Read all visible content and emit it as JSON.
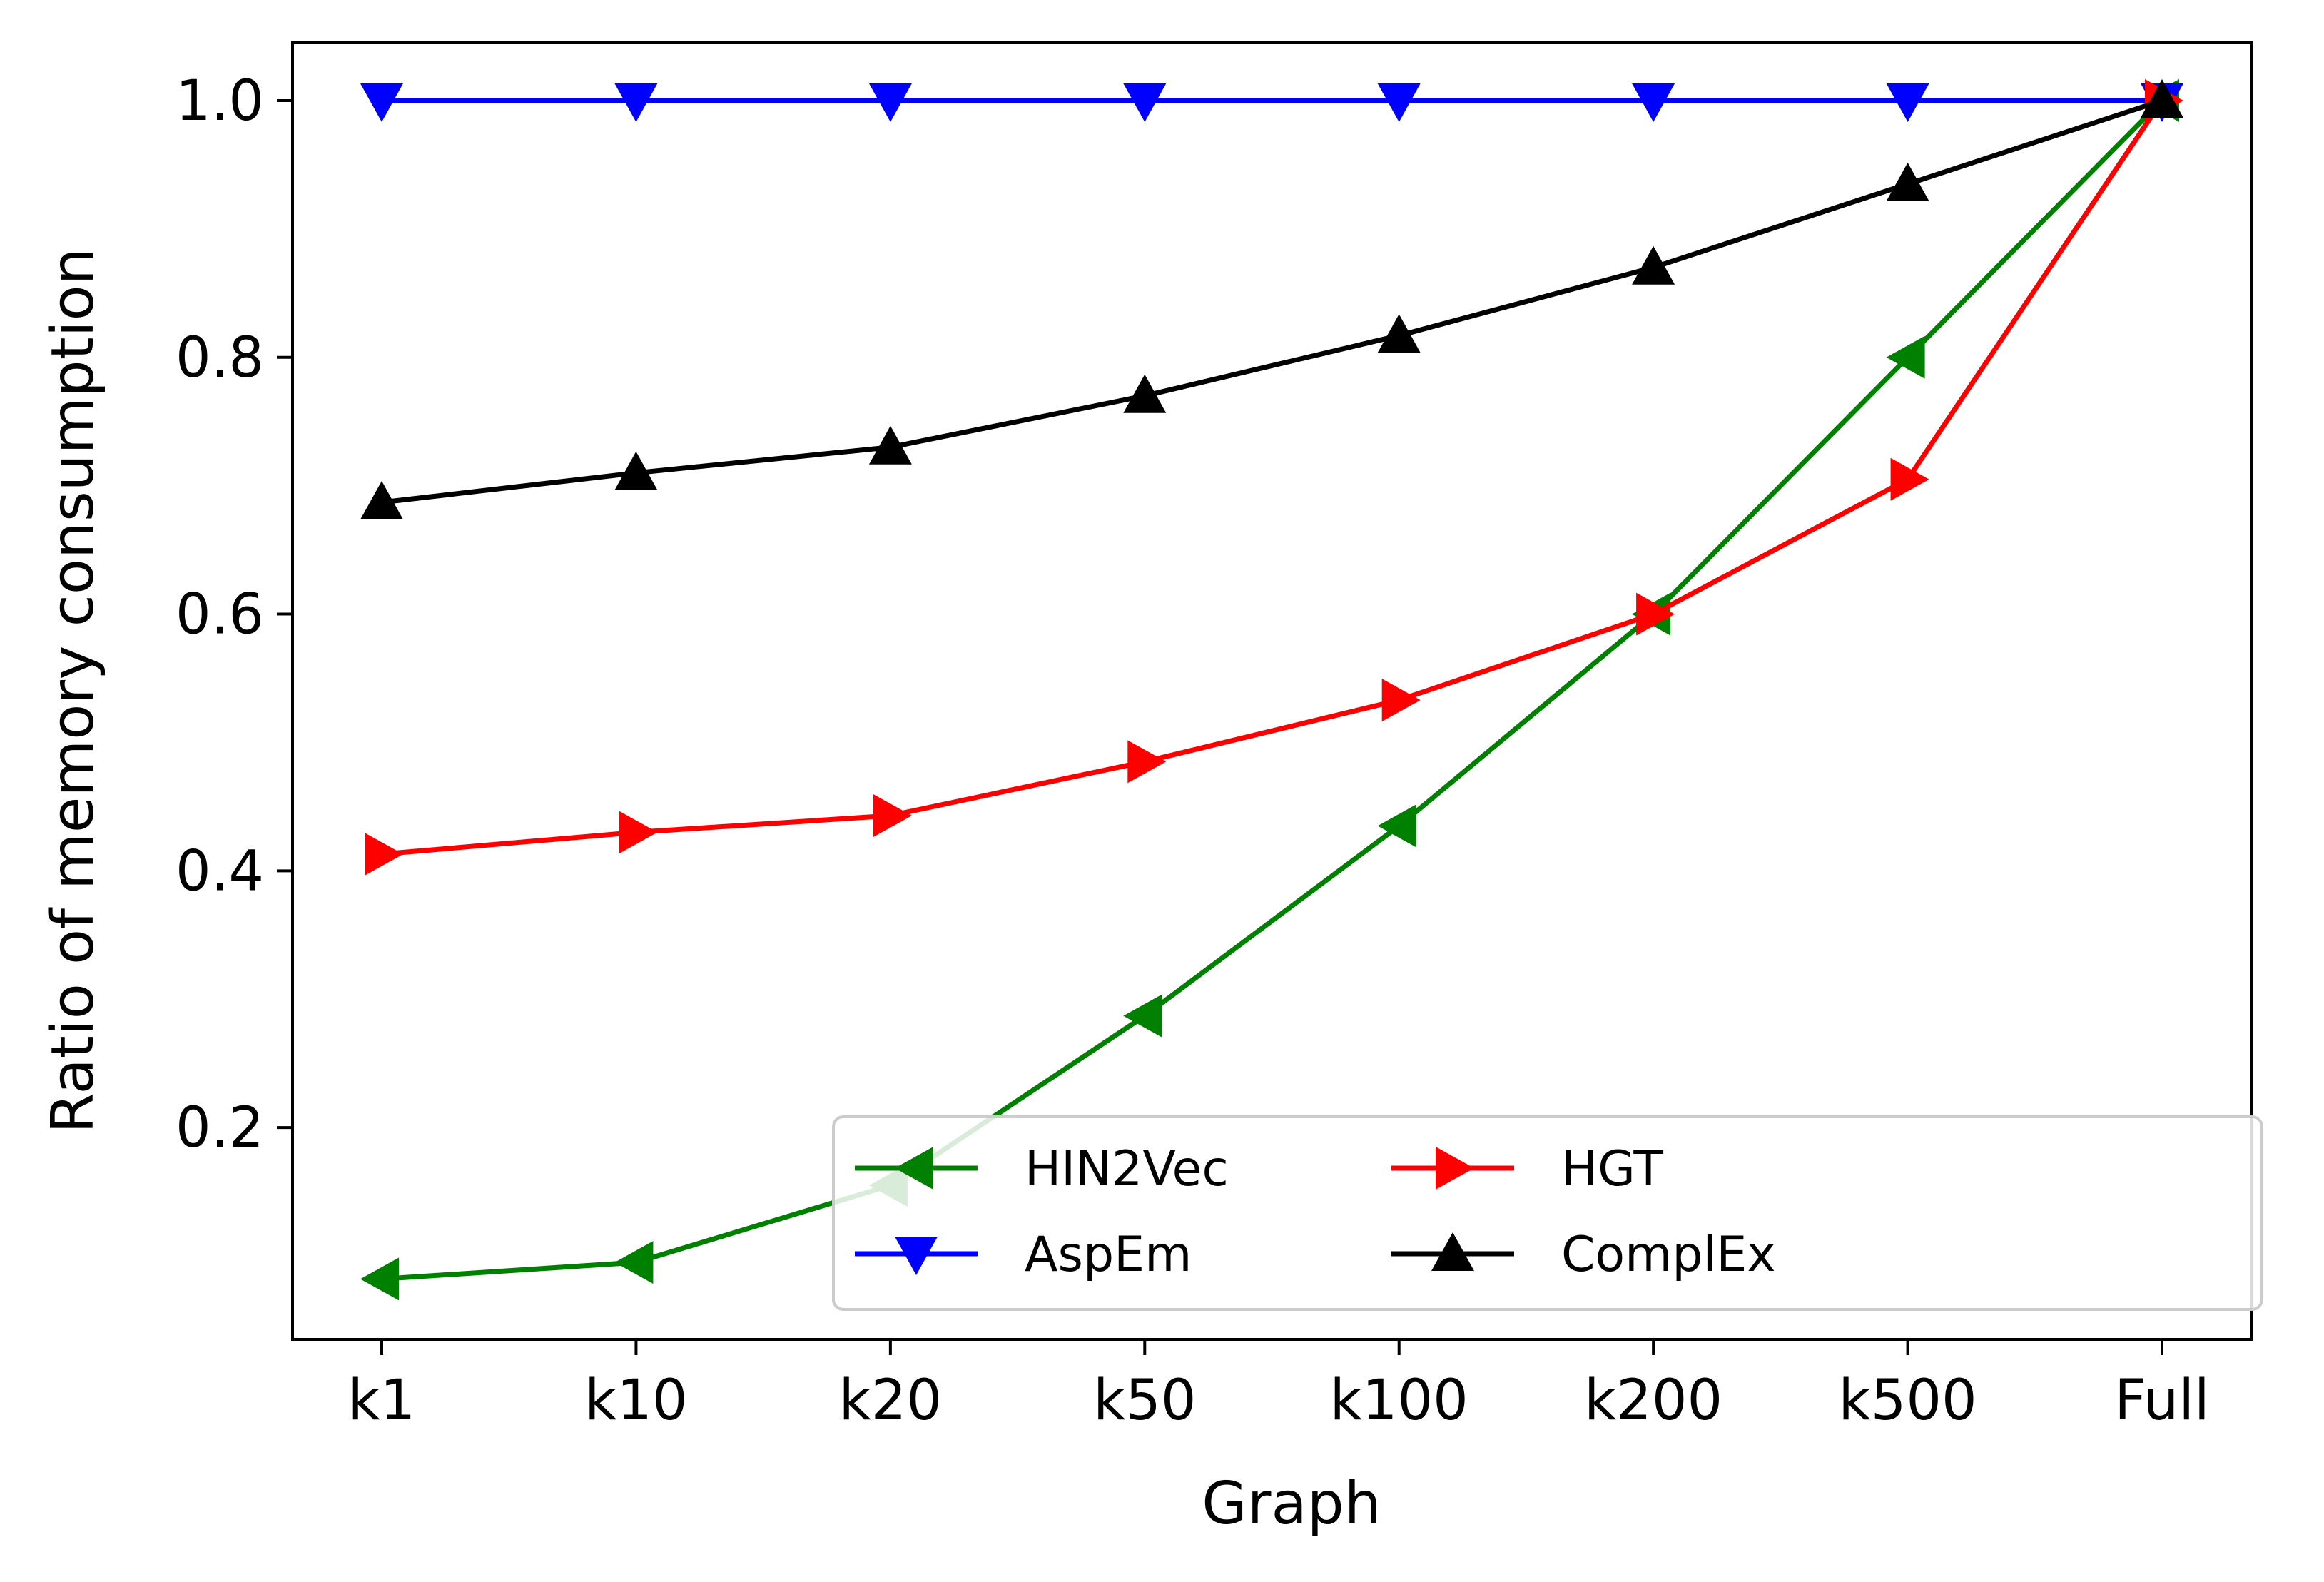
{
  "chart_data": {
    "type": "line",
    "title": "",
    "xlabel": "Graph",
    "ylabel": "Ratio of memory consumption",
    "categories": [
      "k1",
      "k10",
      "k20",
      "k50",
      "k100",
      "k200",
      "k500",
      "Full"
    ],
    "ylim": [
      0.035,
      1.045
    ],
    "yticks": [
      "0.2",
      "0.4",
      "0.6",
      "0.8",
      "1.0"
    ],
    "grid": false,
    "legend": {
      "placement": "lower-right",
      "columns": 3
    },
    "series": [
      {
        "name": "HIN2Vec",
        "color": "#008000",
        "marker": "triangle-left",
        "values": [
          0.082,
          0.095,
          0.155,
          0.287,
          0.435,
          0.6,
          0.8,
          1.0
        ]
      },
      {
        "name": "AspEm",
        "color": "#0000ff",
        "marker": "triangle-down",
        "values": [
          1.0,
          1.0,
          1.0,
          1.0,
          1.0,
          1.0,
          1.0,
          1.0
        ]
      },
      {
        "name": "HGT",
        "color": "#ff0000",
        "marker": "triangle-right",
        "values": [
          0.413,
          0.43,
          0.443,
          0.485,
          0.533,
          0.6,
          0.705,
          1.0
        ]
      },
      {
        "name": "ComplEx",
        "color": "#000000",
        "marker": "triangle-up",
        "values": [
          0.687,
          0.71,
          0.73,
          0.77,
          0.817,
          0.87,
          0.935,
          1.0
        ]
      }
    ]
  }
}
